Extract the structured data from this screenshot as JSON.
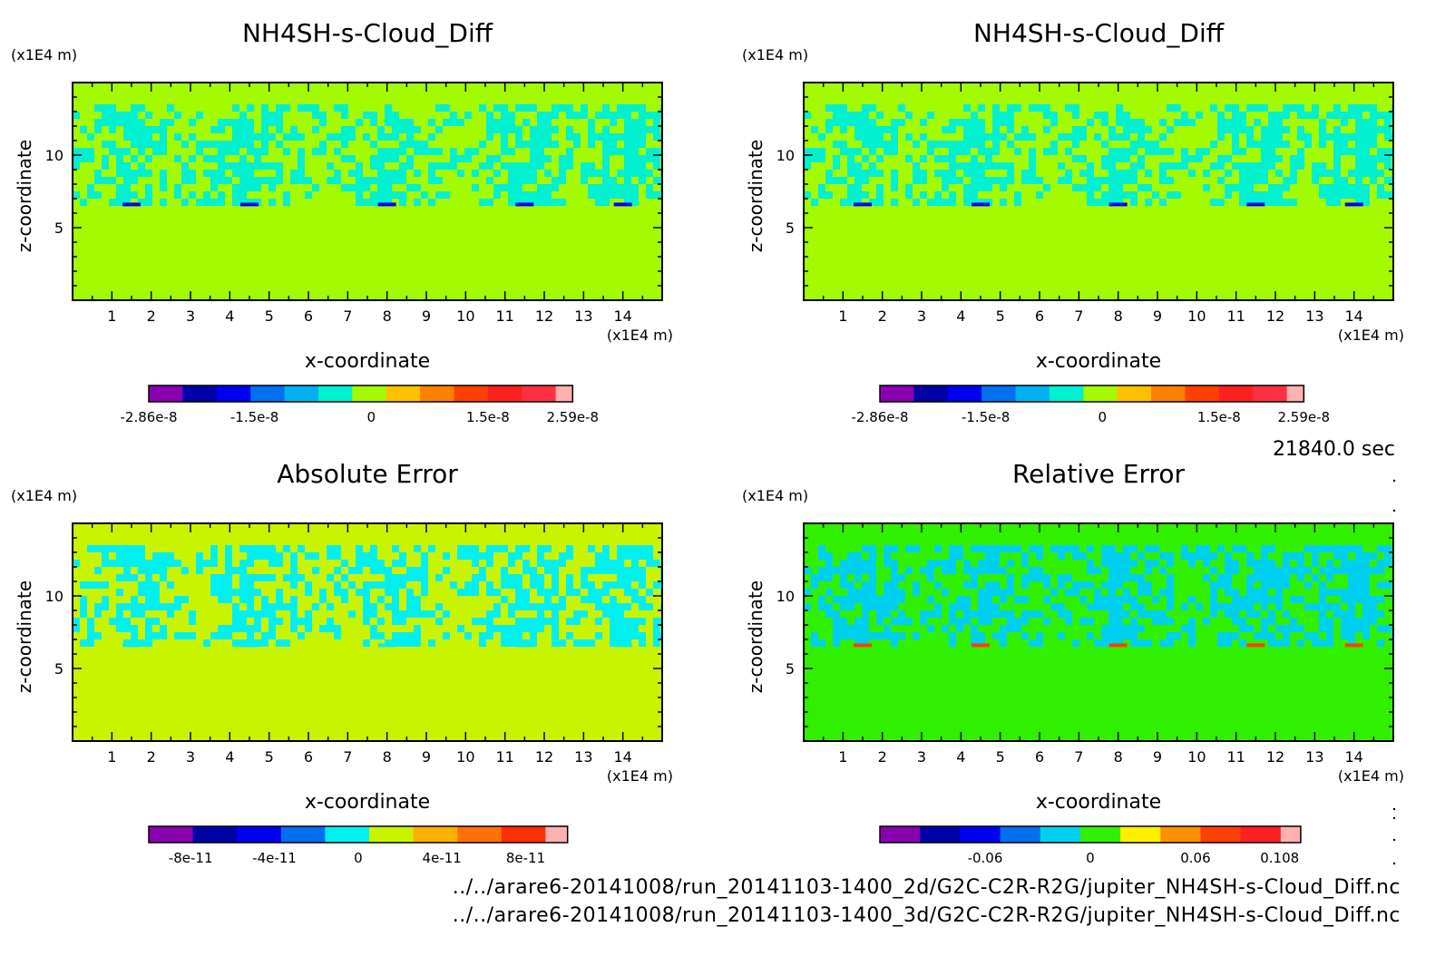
{
  "time_label": "21840.0 sec",
  "footer": {
    "line1": "../../arare6-20141008/run_20141103-1400_2d/G2C-C2R-R2G/jupiter_NH4SH-s-Cloud_Diff.nc",
    "line2": "../../arare6-20141008/run_20141103-1400_3d/G2C-C2R-R2G/jupiter_NH4SH-s-Cloud_Diff.nc"
  },
  "chart_data": [
    {
      "type": "heatmap",
      "title": "NH4SH-s-Cloud_Diff",
      "xlabel": "x-coordinate",
      "ylabel": "z-coordinate",
      "x_unit": "(x1E4 m)",
      "y_unit": "(x1E4 m)",
      "xlim": [
        0,
        15
      ],
      "ylim": [
        0,
        15
      ],
      "x_ticks": [
        1,
        2,
        3,
        4,
        5,
        6,
        7,
        8,
        9,
        10,
        11,
        12,
        13,
        14
      ],
      "y_ticks": [
        5,
        10
      ],
      "background_color": "#a4fa00",
      "colorbar": {
        "colors": [
          "#8a00b0",
          "#0000a8",
          "#0000f0",
          "#0070f0",
          "#00b0f0",
          "#00f0d0",
          "#a4fa00",
          "#ffc000",
          "#ff8000",
          "#ff4000",
          "#ff2020",
          "#ff3040",
          "#ffb0b0"
        ],
        "labels": [
          "-2.86e-8",
          "-1.5e-8",
          "0",
          "1.5e-8",
          "2.59e-8"
        ],
        "label_values": [
          -2.86e-08,
          -1.5e-08,
          0,
          1.5e-08,
          2.59e-08
        ],
        "range": [
          -2.86e-08,
          2.59e-08
        ]
      },
      "features": {
        "cloud_band_z": [
          6.5,
          13.5
        ],
        "blob_centers_x": [
          1.5,
          4.5,
          8,
          11.5,
          14
        ],
        "pattern_color": "#00f0d0",
        "minima_color": "#0000f0",
        "minima_z": 6.6
      }
    },
    {
      "type": "heatmap",
      "title": "NH4SH-s-Cloud_Diff",
      "xlabel": "x-coordinate",
      "ylabel": "z-coordinate",
      "x_unit": "(x1E4 m)",
      "y_unit": "(x1E4 m)",
      "xlim": [
        0,
        15
      ],
      "ylim": [
        0,
        15
      ],
      "x_ticks": [
        1,
        2,
        3,
        4,
        5,
        6,
        7,
        8,
        9,
        10,
        11,
        12,
        13,
        14
      ],
      "y_ticks": [
        5,
        10
      ],
      "background_color": "#a4fa00",
      "colorbar": {
        "colors": [
          "#8a00b0",
          "#0000a8",
          "#0000f0",
          "#0070f0",
          "#00b0f0",
          "#00f0d0",
          "#a4fa00",
          "#ffc000",
          "#ff8000",
          "#ff4000",
          "#ff2020",
          "#ff3040",
          "#ffb0b0"
        ],
        "labels": [
          "-2.86e-8",
          "-1.5e-8",
          "0",
          "1.5e-8",
          "2.59e-8"
        ],
        "label_values": [
          -2.86e-08,
          -1.5e-08,
          0,
          1.5e-08,
          2.59e-08
        ],
        "range": [
          -2.86e-08,
          2.59e-08
        ]
      },
      "features": {
        "cloud_band_z": [
          6.5,
          13.5
        ],
        "blob_centers_x": [
          1.5,
          4.5,
          8,
          11.5,
          14
        ],
        "pattern_color": "#00f0d0",
        "minima_color": "#0000f0",
        "minima_z": 6.6
      }
    },
    {
      "type": "heatmap",
      "title": "Absolute Error",
      "xlabel": "x-coordinate",
      "ylabel": "z-coordinate",
      "x_unit": "(x1E4 m)",
      "y_unit": "(x1E4 m)",
      "xlim": [
        0,
        15
      ],
      "ylim": [
        0,
        15
      ],
      "x_ticks": [
        1,
        2,
        3,
        4,
        5,
        6,
        7,
        8,
        9,
        10,
        11,
        12,
        13,
        14
      ],
      "y_ticks": [
        5,
        10
      ],
      "background_color": "#c8f400",
      "colorbar": {
        "colors": [
          "#8a00b0",
          "#0000a8",
          "#0000f0",
          "#0070f0",
          "#00f0f0",
          "#c8f400",
          "#ffb000",
          "#ff7000",
          "#ff3000",
          "#ffb0b0"
        ],
        "labels": [
          "-8e-11",
          "-4e-11",
          "0",
          "4e-11",
          "8e-11"
        ],
        "label_values": [
          -8e-11,
          -4e-11,
          0,
          4e-11,
          8e-11
        ],
        "range": [
          -1e-10,
          1e-10
        ]
      },
      "features": {
        "cloud_band_z": [
          6.5,
          13.5
        ],
        "blob_centers_x": [
          1.5,
          4.5,
          8,
          11.5,
          14
        ],
        "pattern_color": "#00f0f0",
        "minima_color": "#00f0f0",
        "minima_z": 6.6
      }
    },
    {
      "type": "heatmap",
      "title": "Relative Error",
      "xlabel": "x-coordinate",
      "ylabel": "z-coordinate",
      "x_unit": "(x1E4 m)",
      "y_unit": "(x1E4 m)",
      "xlim": [
        0,
        15
      ],
      "ylim": [
        0,
        15
      ],
      "x_ticks": [
        1,
        2,
        3,
        4,
        5,
        6,
        7,
        8,
        9,
        10,
        11,
        12,
        13,
        14
      ],
      "y_ticks": [
        5,
        10
      ],
      "background_color": "#30f000",
      "colorbar": {
        "colors": [
          "#8a00b0",
          "#0000a8",
          "#0000f0",
          "#0070f0",
          "#00d0f0",
          "#30f000",
          "#fff000",
          "#ff9000",
          "#ff4000",
          "#ff2020",
          "#ffb0b0"
        ],
        "labels": [
          "-0.06",
          "0",
          "0.06",
          "0.108"
        ],
        "label_values": [
          -0.06,
          0,
          0.06,
          0.108
        ],
        "range": [
          -0.12,
          0.12
        ]
      },
      "features": {
        "cloud_band_z": [
          6.5,
          13.5
        ],
        "blob_centers_x": [
          1.5,
          4.5,
          8,
          11.5,
          14
        ],
        "pattern_color": "#00d0f0",
        "minima_color": "#ff4000",
        "minima_z": 6.6
      }
    }
  ]
}
